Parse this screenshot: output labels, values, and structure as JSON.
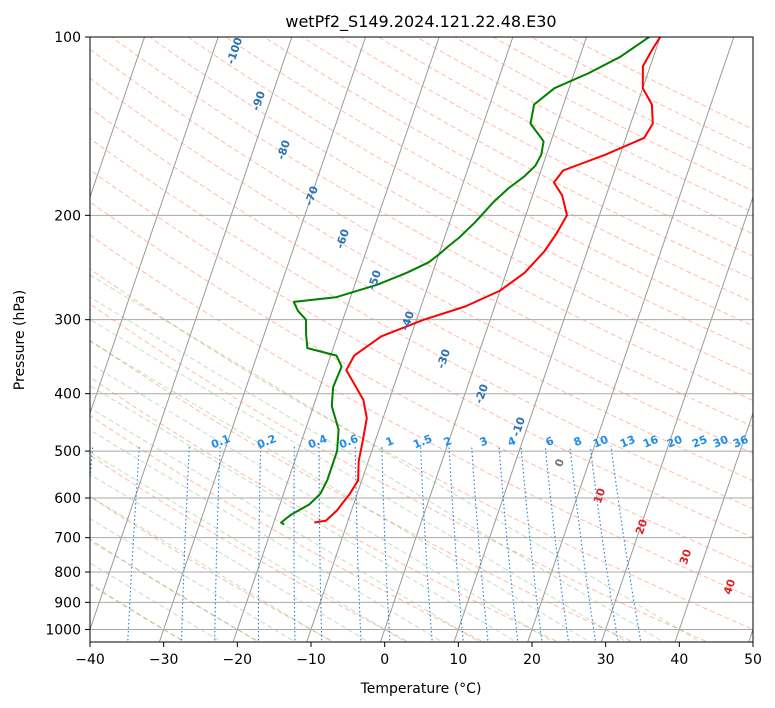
{
  "chart_data": {
    "type": "line",
    "title": "wetPf2_S149.2024.121.22.48.E30",
    "xlabel": "Temperature (°C)",
    "ylabel": "Pressure (hPa)",
    "xlim": [
      -40,
      50
    ],
    "ylim": [
      1050,
      100
    ],
    "y_scale": "log",
    "x_ticks": [
      -40,
      -30,
      -20,
      -10,
      0,
      10,
      20,
      30,
      40,
      50
    ],
    "y_ticks": [
      100,
      200,
      300,
      400,
      500,
      600,
      700,
      800,
      900,
      1000
    ],
    "grid": true,
    "isotherm_labels": [
      "-100",
      "-90",
      "-80",
      "-70",
      "-60",
      "-50",
      "-40",
      "-30",
      "-20",
      "-10",
      "0",
      "10",
      "20",
      "30",
      "40"
    ],
    "mixing_ratio_labels": [
      "0.1",
      "0.2",
      "0.4",
      "0.6",
      "1",
      "1.5",
      "2",
      "3",
      "4",
      "6",
      "8",
      "10",
      "13",
      "16",
      "20",
      "25",
      "30",
      "36"
    ],
    "series": [
      {
        "role": "temperature",
        "color": "#ff0000",
        "points": [
          [
            10,
            100
          ],
          [
            9.5,
            105
          ],
          [
            9,
            112
          ],
          [
            10,
            122
          ],
          [
            12,
            130
          ],
          [
            13,
            140
          ],
          [
            12.5,
            148
          ],
          [
            8,
            158
          ],
          [
            3,
            168
          ],
          [
            2.3,
            176
          ],
          [
            4,
            185
          ],
          [
            5.6,
            200
          ],
          [
            5,
            215
          ],
          [
            4.2,
            230
          ],
          [
            2.5,
            250
          ],
          [
            0,
            268
          ],
          [
            -4,
            285
          ],
          [
            -9,
            300
          ],
          [
            -14,
            320
          ],
          [
            -16.8,
            345
          ],
          [
            -17.2,
            365
          ],
          [
            -15.5,
            385
          ],
          [
            -13.5,
            410
          ],
          [
            -12.2,
            440
          ],
          [
            -11.7,
            480
          ],
          [
            -11.3,
            520
          ],
          [
            -10.5,
            560
          ],
          [
            -11,
            590
          ],
          [
            -12,
            630
          ],
          [
            -13,
            655
          ],
          [
            -14.5,
            660
          ]
        ]
      },
      {
        "role": "dewpoint",
        "color": "#008000",
        "points": [
          [
            8.5,
            100
          ],
          [
            5.5,
            108
          ],
          [
            2,
            115
          ],
          [
            -2,
            122
          ],
          [
            -4,
            130
          ],
          [
            -3.6,
            140
          ],
          [
            -1,
            150
          ],
          [
            -0.7,
            158
          ],
          [
            -1,
            165
          ],
          [
            -2,
            172
          ],
          [
            -3.6,
            180
          ],
          [
            -5,
            190
          ],
          [
            -6.5,
            205
          ],
          [
            -8,
            218
          ],
          [
            -9,
            225
          ],
          [
            -10,
            233
          ],
          [
            -11,
            240
          ],
          [
            -13.5,
            250
          ],
          [
            -17,
            262
          ],
          [
            -22,
            275
          ],
          [
            -27.5,
            280
          ],
          [
            -26.5,
            290
          ],
          [
            -25,
            300
          ],
          [
            -24.3,
            318
          ],
          [
            -23.5,
            335
          ],
          [
            -19.2,
            345
          ],
          [
            -18,
            360
          ],
          [
            -18.2,
            390
          ],
          [
            -17.5,
            420
          ],
          [
            -15.5,
            460
          ],
          [
            -14.7,
            500
          ],
          [
            -14.7,
            560
          ],
          [
            -15,
            590
          ],
          [
            -16,
            615
          ],
          [
            -18,
            640
          ],
          [
            -19,
            660
          ],
          [
            -18.5,
            665
          ]
        ]
      }
    ]
  }
}
